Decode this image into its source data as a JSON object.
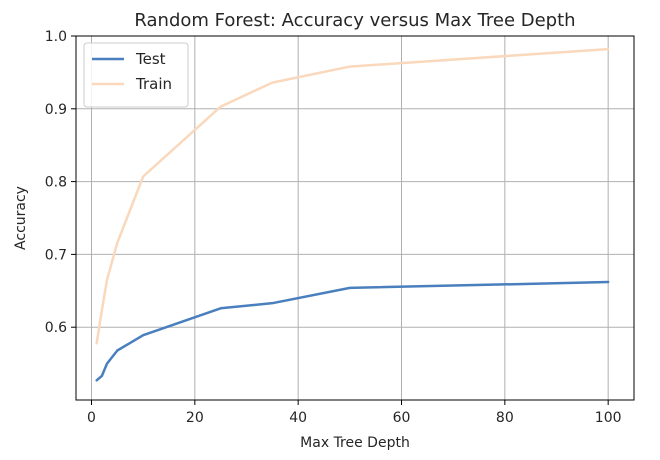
{
  "chart_data": {
    "type": "line",
    "title": "Random Forest: Accuracy versus Max Tree Depth",
    "xlabel": "Max Tree Depth",
    "ylabel": "Accuracy",
    "xlim": [
      -3,
      105
    ],
    "ylim": [
      0.5,
      1.0
    ],
    "xticks": [
      0,
      20,
      40,
      60,
      80,
      100
    ],
    "yticks": [
      0.6,
      0.7,
      0.8,
      0.9,
      1.0
    ],
    "xtick_labels": [
      "0",
      "20",
      "40",
      "60",
      "80",
      "100"
    ],
    "ytick_labels": [
      "0.6",
      "0.7",
      "0.8",
      "0.9",
      "1.0"
    ],
    "grid": true,
    "legend_position": "top-left",
    "x": [
      1,
      2,
      3,
      5,
      10,
      25,
      35,
      50,
      100
    ],
    "series": [
      {
        "name": "Test",
        "color": "#4a7fbe",
        "values": [
          0.527,
          0.533,
          0.55,
          0.568,
          0.589,
          0.626,
          0.633,
          0.654,
          0.662
        ]
      },
      {
        "name": "Train",
        "color": "#fad8bc",
        "values": [
          0.578,
          0.623,
          0.665,
          0.716,
          0.807,
          0.903,
          0.936,
          0.958,
          0.982
        ]
      }
    ]
  }
}
